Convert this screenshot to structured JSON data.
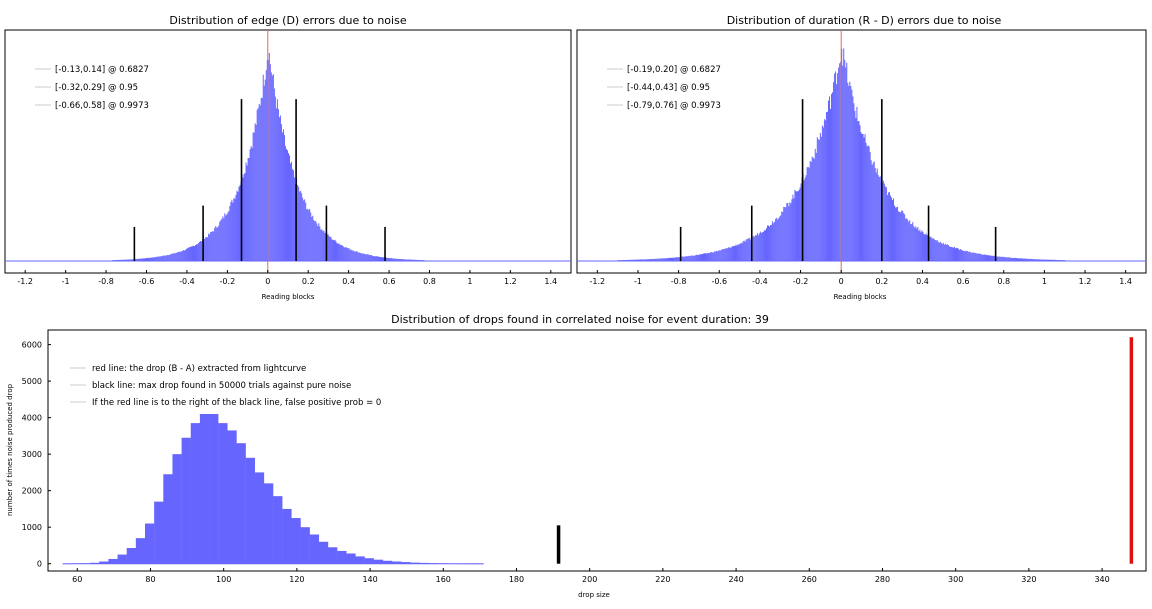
{
  "chart_data": [
    {
      "type": "histogram",
      "title": "Distribution of edge (D) errors due to noise",
      "xlabel": "Reading blocks",
      "ylabel": "",
      "xlim": [
        -1.3,
        1.5
      ],
      "xticks": [
        "-1.2",
        "-1",
        "-0.8",
        "-0.6",
        "-0.4",
        "-0.2",
        "0",
        "0.2",
        "0.4",
        "0.6",
        "0.8",
        "1",
        "1.2",
        "1.4"
      ],
      "distribution": {
        "center": 0,
        "spread": 0.14,
        "peak_count": 1.0
      },
      "confidence_intervals": [
        {
          "label": "[-0.13,0.14] @ 0.6827",
          "low": -0.13,
          "high": 0.14
        },
        {
          "label": "[-0.32,0.29] @ 0.95",
          "low": -0.32,
          "high": 0.29
        },
        {
          "label": "[-0.66,0.58] @ 0.9973",
          "low": -0.66,
          "high": 0.58
        }
      ],
      "zero_line": 0,
      "colors": {
        "bars": "#6666ff",
        "marker": "#000000",
        "zero_line": "#e06666"
      }
    },
    {
      "type": "histogram",
      "title": "Distribution of duration (R - D) errors due to noise",
      "xlabel": "Reading blocks",
      "ylabel": "",
      "xlim": [
        -1.3,
        1.5
      ],
      "xticks": [
        "-1.2",
        "-1",
        "-0.8",
        "-0.6",
        "-0.4",
        "-0.2",
        "0",
        "0.2",
        "0.4",
        "0.6",
        "0.8",
        "1",
        "1.2",
        "1.4"
      ],
      "distribution": {
        "center": 0,
        "spread": 0.2,
        "peak_count": 1.0
      },
      "confidence_intervals": [
        {
          "label": "[-0.19,0.20] @ 0.6827",
          "low": -0.19,
          "high": 0.2
        },
        {
          "label": "[-0.44,0.43] @ 0.95",
          "low": -0.44,
          "high": 0.43
        },
        {
          "label": "[-0.79,0.76] @ 0.9973",
          "low": -0.79,
          "high": 0.76
        }
      ],
      "zero_line": 0,
      "colors": {
        "bars": "#6666ff",
        "marker": "#000000",
        "zero_line": "#e06666"
      }
    },
    {
      "type": "bar",
      "title": "Distribution of drops found in correlated noise for event duration: 39",
      "xlabel": "drop size",
      "ylabel": "number of times noise produced drop",
      "xlim": [
        52,
        352
      ],
      "ylim": [
        -200,
        6400
      ],
      "xticks": [
        "60",
        "80",
        "100",
        "120",
        "140",
        "160",
        "180",
        "200",
        "220",
        "240",
        "260",
        "280",
        "300",
        "320",
        "340"
      ],
      "yticks": [
        "0",
        "1000",
        "2000",
        "3000",
        "4000",
        "5000",
        "6000"
      ],
      "bin_width": 2.5,
      "bins": [
        {
          "x": 56,
          "count": 5
        },
        {
          "x": 58.5,
          "count": 8
        },
        {
          "x": 61,
          "count": 12
        },
        {
          "x": 63.5,
          "count": 25
        },
        {
          "x": 66,
          "count": 60
        },
        {
          "x": 68.5,
          "count": 130
        },
        {
          "x": 71,
          "count": 250
        },
        {
          "x": 73.5,
          "count": 430
        },
        {
          "x": 76,
          "count": 700
        },
        {
          "x": 78.5,
          "count": 1100
        },
        {
          "x": 81,
          "count": 1700
        },
        {
          "x": 83.5,
          "count": 2450
        },
        {
          "x": 86,
          "count": 3000
        },
        {
          "x": 88.5,
          "count": 3450
        },
        {
          "x": 91,
          "count": 3850
        },
        {
          "x": 93.5,
          "count": 4100
        },
        {
          "x": 96,
          "count": 4100
        },
        {
          "x": 98.5,
          "count": 3850
        },
        {
          "x": 101,
          "count": 3650
        },
        {
          "x": 103.5,
          "count": 3300
        },
        {
          "x": 106,
          "count": 2900
        },
        {
          "x": 108.5,
          "count": 2500
        },
        {
          "x": 111,
          "count": 2200
        },
        {
          "x": 113.5,
          "count": 1850
        },
        {
          "x": 116,
          "count": 1500
        },
        {
          "x": 118.5,
          "count": 1250
        },
        {
          "x": 121,
          "count": 1000
        },
        {
          "x": 123.5,
          "count": 800
        },
        {
          "x": 126,
          "count": 600
        },
        {
          "x": 128.5,
          "count": 450
        },
        {
          "x": 131,
          "count": 350
        },
        {
          "x": 133.5,
          "count": 280
        },
        {
          "x": 136,
          "count": 200
        },
        {
          "x": 138.5,
          "count": 150
        },
        {
          "x": 141,
          "count": 110
        },
        {
          "x": 143.5,
          "count": 80
        },
        {
          "x": 146,
          "count": 60
        },
        {
          "x": 148.5,
          "count": 45
        },
        {
          "x": 151,
          "count": 30
        },
        {
          "x": 153.5,
          "count": 22
        },
        {
          "x": 156,
          "count": 15
        },
        {
          "x": 158.5,
          "count": 10
        },
        {
          "x": 161,
          "count": 7
        },
        {
          "x": 163.5,
          "count": 5
        },
        {
          "x": 166,
          "count": 3
        },
        {
          "x": 168.5,
          "count": 2
        }
      ],
      "max_noise_drop": {
        "x": 191.5,
        "height": 1050
      },
      "observed_drop": {
        "x": 348,
        "height": 6200
      },
      "legend": [
        "red line: the drop (B - A) extracted from lightcurve",
        "black line: max drop found in 50000 trials against pure noise",
        "If the red line is to the right of the black line, false positive prob = 0"
      ],
      "colors": {
        "bars": "#6666ff",
        "max_noise_line": "#000000",
        "observed_line": "#dd1111"
      }
    }
  ]
}
